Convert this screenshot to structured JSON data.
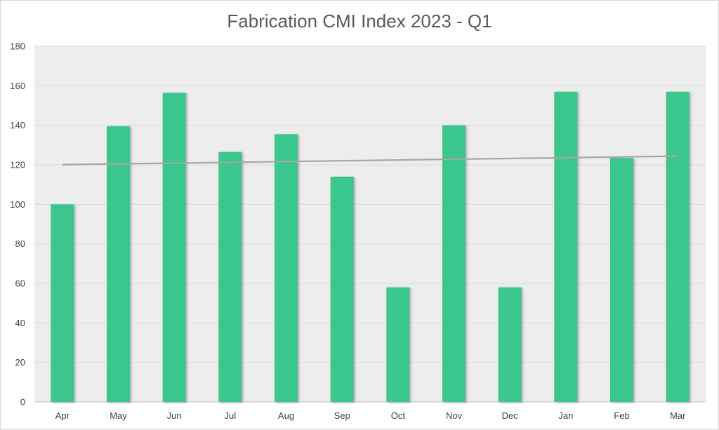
{
  "chart_data": {
    "type": "bar",
    "title": "Fabrication CMI Index 2023 - Q1",
    "xlabel": "",
    "ylabel": "",
    "categories": [
      "Apr",
      "May",
      "Jun",
      "Jul",
      "Aug",
      "Sep",
      "Oct",
      "Nov",
      "Dec",
      "Jan",
      "Feb",
      "Mar"
    ],
    "values": [
      100,
      139.5,
      156.5,
      126.5,
      135.5,
      114,
      58,
      140,
      58,
      157,
      123.5,
      157
    ],
    "trendline": {
      "type": "linear",
      "start": 120.1,
      "end": 124.4
    },
    "ylim": [
      0,
      180
    ],
    "yticks": [
      0,
      20,
      40,
      60,
      80,
      100,
      120,
      140,
      160,
      180
    ],
    "grid": true,
    "legend": "none",
    "colors": {
      "bar": "#3ac68e",
      "bar_shadow": "#9a9a9a",
      "trendline": "#a6a6a6",
      "plot_background": "#ededed",
      "gridline": "#d9d9d9",
      "axis_line": "#bfbfbf"
    }
  }
}
